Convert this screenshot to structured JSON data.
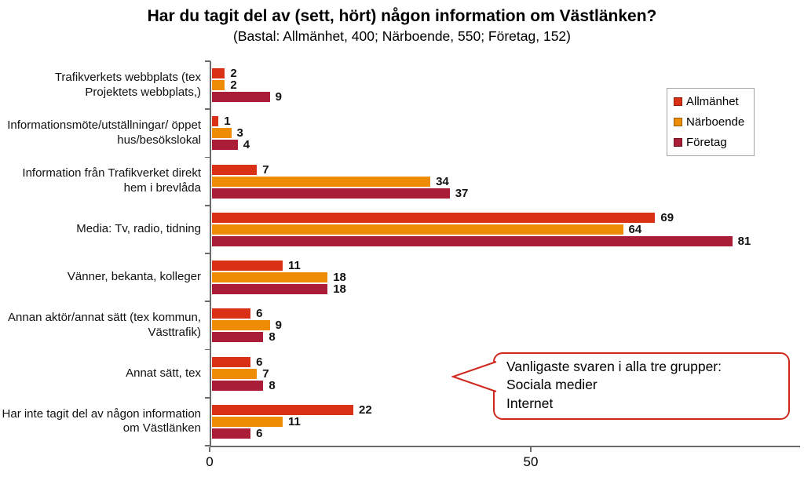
{
  "chart_data": {
    "type": "bar",
    "orientation": "horizontal",
    "title": "Har du tagit del av (sett, hört) någon information om Västlänken?",
    "subtitle": "(Bastal: Allmänhet, 400; Närboende, 550; Företag, 152)",
    "categories": [
      "Trafikverkets webbplats (tex Projektets webbplats,)",
      "Informationsmöte/utställningar/ öppet hus/besökslokal",
      "Information från Trafikverket direkt hem i brevlåda",
      "Media: Tv, radio, tidning",
      "Vänner, bekanta, kolleger",
      "Annan aktör/annat sätt (tex kommun, Västtrafik)",
      "Annat sätt, tex",
      "Har inte tagit del av någon information om Västlänken"
    ],
    "series": [
      {
        "name": "Allmänhet",
        "color": "#DA3015",
        "values": [
          2,
          1,
          7,
          69,
          11,
          6,
          6,
          22
        ]
      },
      {
        "name": "Närboende",
        "color": "#EE8C05",
        "values": [
          2,
          3,
          34,
          64,
          18,
          9,
          7,
          11
        ]
      },
      {
        "name": "Företag",
        "color": "#A91E36",
        "values": [
          9,
          4,
          37,
          81,
          18,
          8,
          8,
          6
        ]
      }
    ],
    "xticks": [
      0,
      50
    ],
    "xlim": [
      0,
      92
    ],
    "xlabel": "",
    "ylabel": "",
    "grid": false,
    "legend_position": "top-right",
    "annotation": {
      "lines": [
        "Vanligaste svaren i alla tre grupper:",
        "Sociala medier",
        "Internet"
      ]
    }
  },
  "axis_color": "#6b6b6b",
  "callout_border_color": "#d0281e"
}
